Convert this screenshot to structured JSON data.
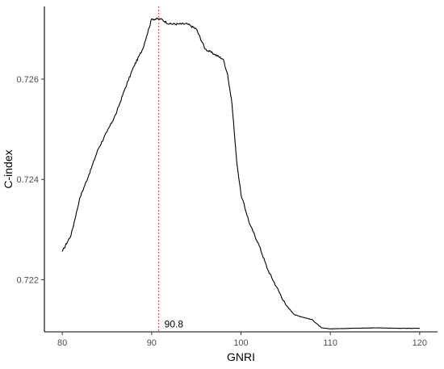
{
  "chart_data": {
    "type": "line",
    "title": "",
    "xlabel": "GNRI",
    "ylabel": "C-index",
    "xlim": [
      78,
      122
    ],
    "ylim": [
      0.72096,
      0.72745
    ],
    "x_ticks": [
      80,
      90,
      100,
      110,
      120
    ],
    "x_tick_labels": [
      "80",
      "90",
      "100",
      "110",
      "120"
    ],
    "y_ticks": [
      0.722,
      0.724,
      0.726
    ],
    "y_tick_labels": [
      "0.722",
      "0.724",
      "0.726"
    ],
    "grid": false,
    "legend": "none",
    "series": [
      {
        "color": "#000000",
        "x": [
          80,
          81,
          82,
          83,
          84,
          85,
          86,
          87,
          88,
          89,
          90,
          91,
          92,
          93,
          94,
          95,
          96,
          97,
          98,
          98.5,
          99,
          99.5,
          100,
          101,
          102,
          103,
          104,
          105,
          106,
          107,
          108,
          109,
          110,
          112,
          115,
          118,
          120
        ],
        "y": [
          0.72256,
          0.7229,
          0.72365,
          0.7241,
          0.7246,
          0.72495,
          0.7253,
          0.7258,
          0.72625,
          0.7266,
          0.7272,
          0.7272,
          0.7271,
          0.7271,
          0.7271,
          0.727,
          0.7266,
          0.7265,
          0.7264,
          0.7261,
          0.7255,
          0.7244,
          0.7237,
          0.7231,
          0.7227,
          0.7222,
          0.72185,
          0.7215,
          0.7213,
          0.72125,
          0.7212,
          0.72104,
          0.72102,
          0.72103,
          0.72104,
          0.72103,
          0.72103
        ]
      }
    ],
    "annotations": [
      {
        "type": "vline",
        "x": 90.8,
        "color": "#ff0000",
        "style": "dotted",
        "label": "90.8",
        "label_y": 0.72105
      }
    ]
  }
}
